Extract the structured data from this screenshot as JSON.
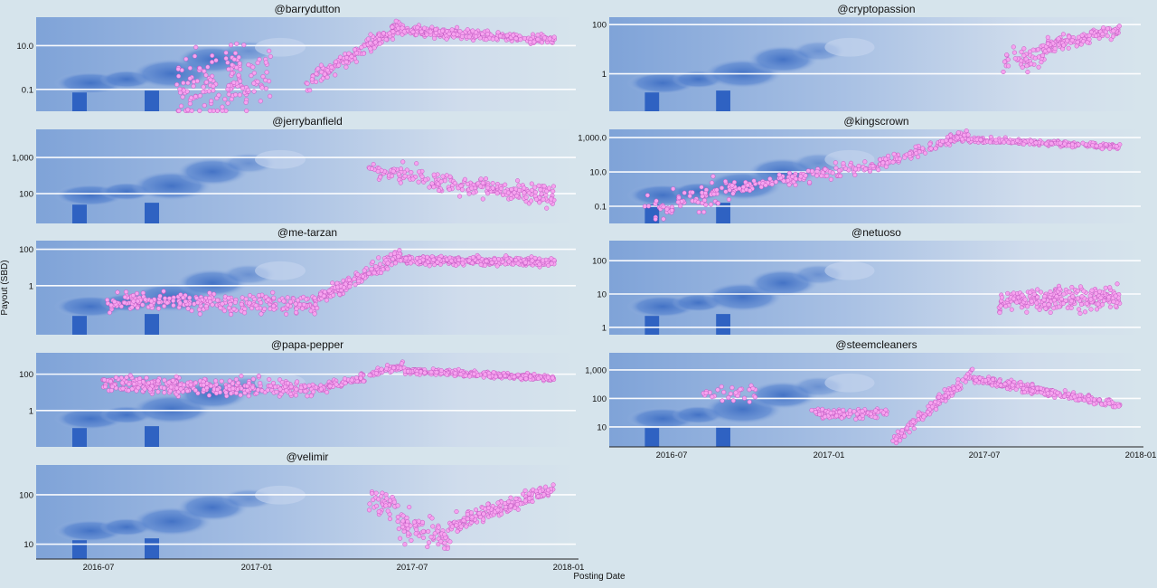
{
  "figure": {
    "ylabel": "Payout (SBD)",
    "xlabel": "Posting Date",
    "xticks": [
      "2016-07",
      "2017-01",
      "2017-07",
      "2018-01"
    ]
  },
  "colors": {
    "point_fill": "#f6a3ef",
    "point_edge": "#c257c2",
    "gridline": "#ffffff",
    "page_bg": "#d6e4ec"
  },
  "chart_data": [
    {
      "type": "scatter",
      "title": "@barrydutton",
      "yscale": "log",
      "ylim": [
        0.01,
        200
      ],
      "yticks": [
        {
          "v": 0.1,
          "label": "0.1"
        },
        {
          "v": 10,
          "label": "10.0"
        }
      ],
      "x_range": [
        "2016-05-01",
        "2018-01-01"
      ],
      "series": [
        {
          "segments": [
            {
              "from": "2016-10-05",
              "to": "2017-01-20",
              "y0": 0.1,
              "y1": 0.5,
              "spread": 1.4,
              "n": 160
            },
            {
              "from": "2017-03-01",
              "to": "2017-06-15",
              "y0": 0.2,
              "y1": 80,
              "spread": 0.35,
              "n": 170
            },
            {
              "from": "2017-06-15",
              "to": "2017-12-05",
              "y0": 50,
              "y1": 18,
              "spread": 0.22,
              "n": 260
            }
          ]
        }
      ]
    },
    {
      "type": "scatter",
      "title": "@cryptopassion",
      "yscale": "log",
      "ylim": [
        0.03,
        200
      ],
      "yticks": [
        {
          "v": 1,
          "label": "1"
        },
        {
          "v": 100,
          "label": "100"
        }
      ],
      "x_range": [
        "2016-05-01",
        "2018-01-01"
      ],
      "series": [
        {
          "segments": [
            {
              "from": "2017-07-25",
              "to": "2017-09-10",
              "y0": 3,
              "y1": 6,
              "spread": 0.45,
              "n": 50
            },
            {
              "from": "2017-09-10",
              "to": "2017-12-05",
              "y0": 12,
              "y1": 70,
              "spread": 0.3,
              "n": 120
            }
          ]
        }
      ]
    },
    {
      "type": "scatter",
      "title": "@jerrybanfield",
      "yscale": "log",
      "ylim": [
        15,
        6000
      ],
      "yticks": [
        {
          "v": 100,
          "label": "100"
        },
        {
          "v": 1000,
          "label": "1,000"
        }
      ],
      "x_range": [
        "2016-05-01",
        "2018-01-01"
      ],
      "series": [
        {
          "segments": [
            {
              "from": "2017-05-10",
              "to": "2017-07-20",
              "y0": 500,
              "y1": 250,
              "spread": 0.25,
              "n": 60
            },
            {
              "from": "2017-07-20",
              "to": "2017-12-05",
              "y0": 200,
              "y1": 90,
              "spread": 0.25,
              "n": 180
            }
          ]
        }
      ]
    },
    {
      "type": "scatter",
      "title": "@kingscrown",
      "yscale": "log",
      "ylim": [
        0.01,
        3000
      ],
      "yticks": [
        {
          "v": 0.1,
          "label": "0.1"
        },
        {
          "v": 10,
          "label": "10.0"
        },
        {
          "v": 1000,
          "label": "1,000.0"
        }
      ],
      "x_range": [
        "2016-05-01",
        "2018-01-01"
      ],
      "series": [
        {
          "segments": [
            {
              "from": "2016-06-10",
              "to": "2016-09-15",
              "y0": 0.05,
              "y1": 0.8,
              "spread": 0.8,
              "n": 70
            },
            {
              "from": "2016-09-15",
              "to": "2017-02-15",
              "y0": 1,
              "y1": 20,
              "spread": 0.35,
              "n": 120
            },
            {
              "from": "2017-02-15",
              "to": "2017-06-15",
              "y0": 15,
              "y1": 1500,
              "spread": 0.3,
              "n": 140
            },
            {
              "from": "2017-06-15",
              "to": "2017-12-05",
              "y0": 800,
              "y1": 300,
              "spread": 0.15,
              "n": 220
            }
          ]
        }
      ]
    },
    {
      "type": "scatter",
      "title": "@me-tarzan",
      "yscale": "log",
      "ylim": [
        0.002,
        300
      ],
      "yticks": [
        {
          "v": 1,
          "label": "1"
        },
        {
          "v": 100,
          "label": "100"
        }
      ],
      "x_range": [
        "2016-05-01",
        "2018-01-01"
      ],
      "series": [
        {
          "segments": [
            {
              "from": "2016-07-20",
              "to": "2017-03-15",
              "y0": 0.15,
              "y1": 0.1,
              "spread": 0.55,
              "n": 260
            },
            {
              "from": "2017-03-15",
              "to": "2017-06-15",
              "y0": 0.2,
              "y1": 50,
              "spread": 0.35,
              "n": 180
            },
            {
              "from": "2017-06-15",
              "to": "2017-12-05",
              "y0": 25,
              "y1": 20,
              "spread": 0.22,
              "n": 320
            }
          ]
        }
      ]
    },
    {
      "type": "scatter",
      "title": "@netuoso",
      "yscale": "log",
      "ylim": [
        0.6,
        400
      ],
      "yticks": [
        {
          "v": 1,
          "label": "1"
        },
        {
          "v": 10,
          "label": "10"
        },
        {
          "v": 100,
          "label": "100"
        }
      ],
      "x_range": [
        "2016-05-01",
        "2018-01-01"
      ],
      "series": [
        {
          "segments": [
            {
              "from": "2017-07-20",
              "to": "2017-12-05",
              "y0": 6,
              "y1": 8,
              "spread": 0.35,
              "n": 260
            }
          ]
        }
      ]
    },
    {
      "type": "scatter",
      "title": "@papa-pepper",
      "yscale": "log",
      "ylim": [
        0.01,
        1500
      ],
      "yticks": [
        {
          "v": 1,
          "label": "1"
        },
        {
          "v": 100,
          "label": "100"
        }
      ],
      "x_range": [
        "2016-05-01",
        "2018-01-01"
      ],
      "series": [
        {
          "segments": [
            {
              "from": "2016-07-15",
              "to": "2017-03-15",
              "y0": 30,
              "y1": 15,
              "spread": 0.45,
              "n": 320
            },
            {
              "from": "2017-03-15",
              "to": "2017-06-20",
              "y0": 15,
              "y1": 300,
              "spread": 0.25,
              "n": 140
            },
            {
              "from": "2017-06-20",
              "to": "2017-12-05",
              "y0": 150,
              "y1": 60,
              "spread": 0.15,
              "n": 300
            }
          ]
        }
      ]
    },
    {
      "type": "scatter",
      "title": "@steemcleaners",
      "yscale": "log",
      "ylim": [
        2,
        4000
      ],
      "yticks": [
        {
          "v": 10,
          "label": "10"
        },
        {
          "v": 100,
          "label": "100"
        },
        {
          "v": 1000,
          "label": "1,000"
        }
      ],
      "x_range": [
        "2016-05-01",
        "2018-01-01"
      ],
      "series": [
        {
          "segments": [
            {
              "from": "2016-08-15",
              "to": "2016-10-15",
              "y0": 150,
              "y1": 200,
              "spread": 0.35,
              "n": 30
            },
            {
              "from": "2016-12-15",
              "to": "2017-03-15",
              "y0": 30,
              "y1": 30,
              "spread": 0.15,
              "n": 120
            },
            {
              "from": "2017-03-20",
              "to": "2017-06-20",
              "y0": 3,
              "y1": 800,
              "spread": 0.22,
              "n": 120
            },
            {
              "from": "2017-06-20",
              "to": "2017-12-05",
              "y0": 500,
              "y1": 60,
              "spread": 0.15,
              "n": 240
            }
          ]
        }
      ]
    },
    {
      "type": "scatter",
      "title": "@velimir",
      "yscale": "log",
      "ylim": [
        5,
        400
      ],
      "yticks": [
        {
          "v": 10,
          "label": "10"
        },
        {
          "v": 100,
          "label": "100"
        }
      ],
      "x_range": [
        "2016-05-01",
        "2018-01-01"
      ],
      "series": [
        {
          "segments": [
            {
              "from": "2017-05-10",
              "to": "2017-06-10",
              "y0": 80,
              "y1": 60,
              "spread": 0.3,
              "n": 40
            },
            {
              "from": "2017-06-10",
              "to": "2017-08-10",
              "y0": 30,
              "y1": 12,
              "spread": 0.3,
              "n": 90
            },
            {
              "from": "2017-08-10",
              "to": "2017-12-05",
              "y0": 25,
              "y1": 130,
              "spread": 0.15,
              "n": 180
            }
          ]
        }
      ]
    }
  ]
}
